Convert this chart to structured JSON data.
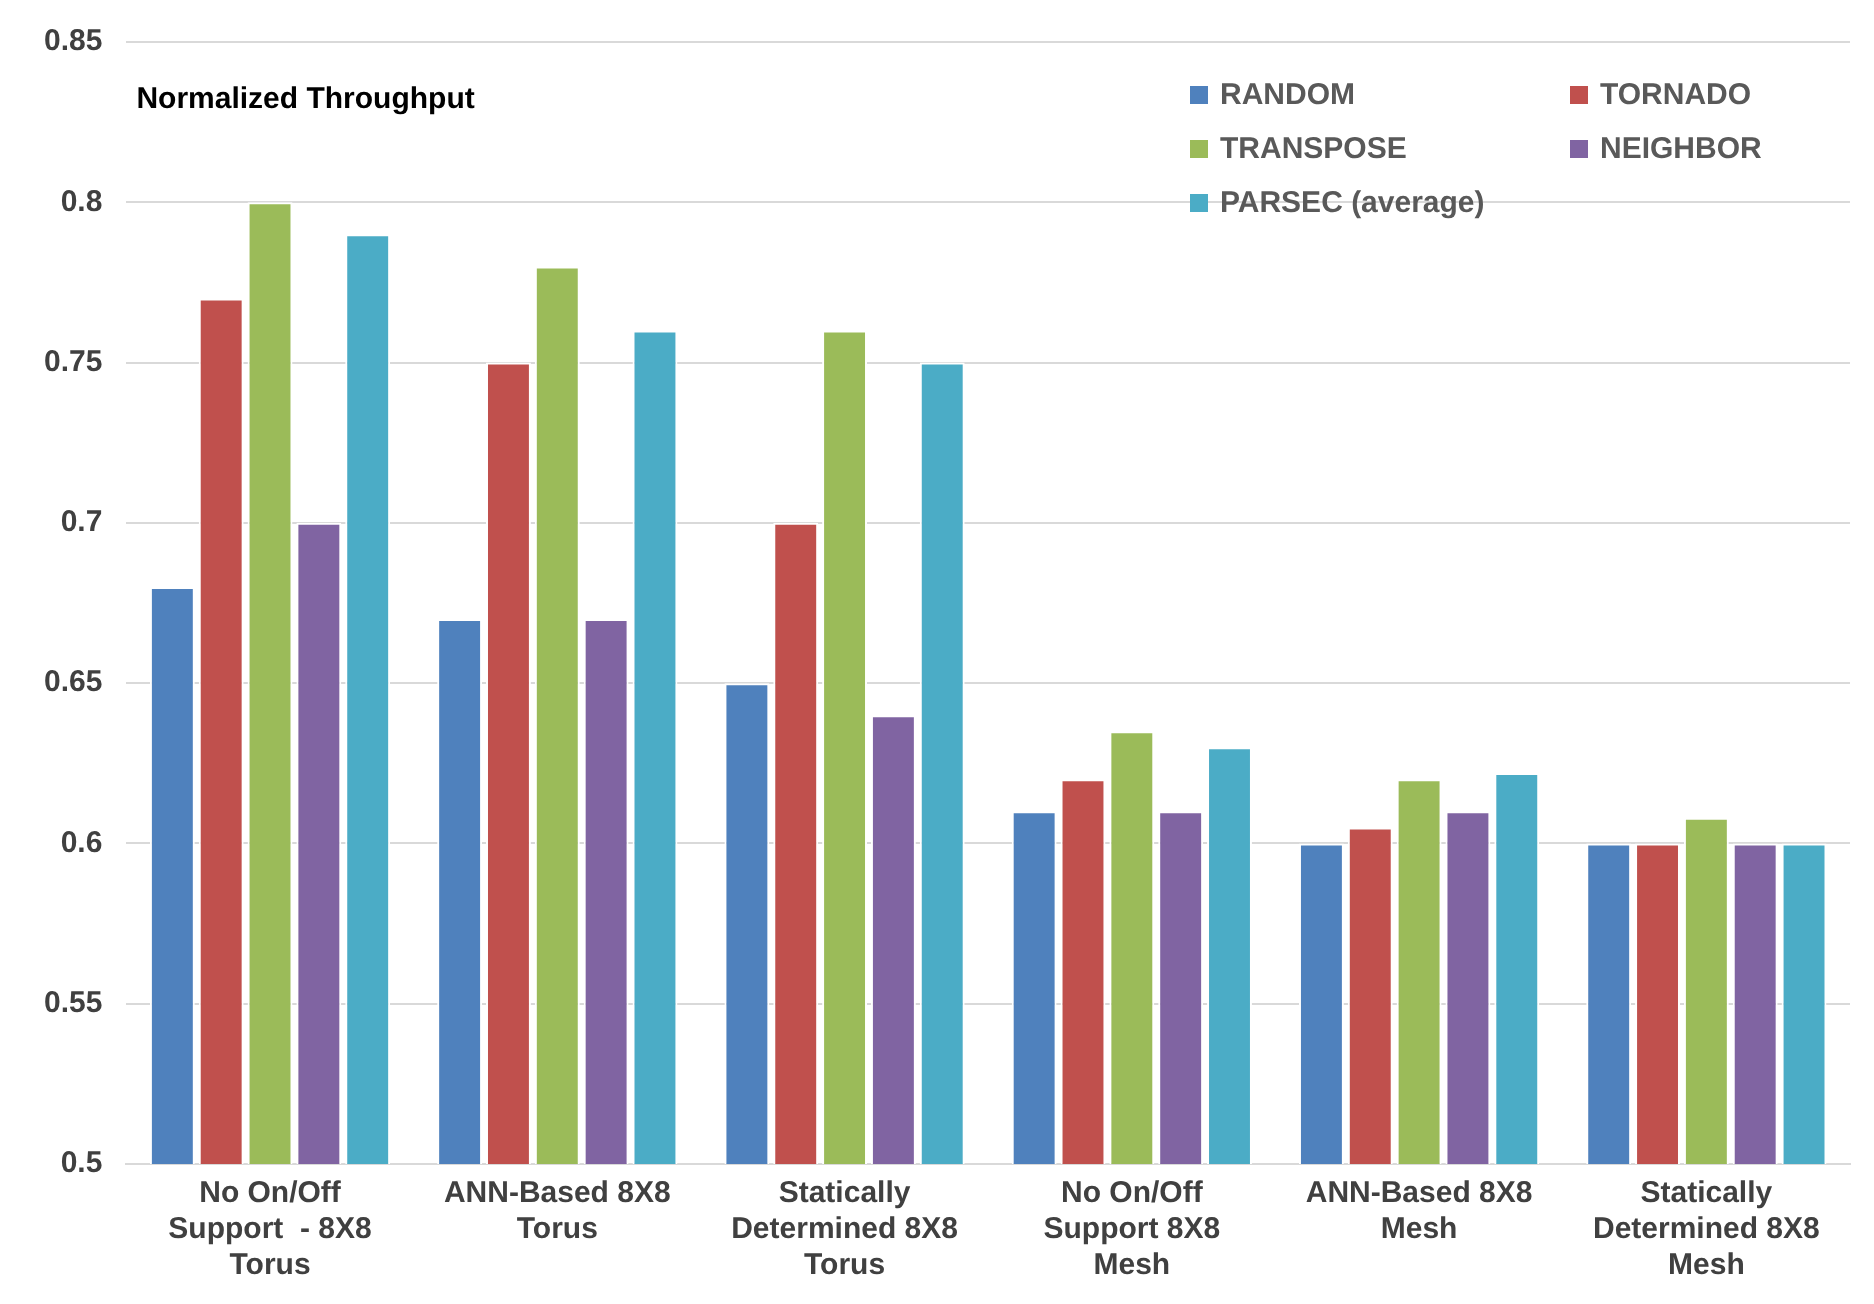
{
  "chart_data": {
    "type": "bar",
    "title": "Normalized Throughput",
    "categories": [
      "No On/Off Support  - 8X8 Torus",
      "ANN-Based 8X8 Torus",
      "Statically Determined 8X8 Torus",
      "No On/Off Support 8X8 Mesh",
      "ANN-Based 8X8 Mesh",
      "Statically Determined 8X8 Mesh"
    ],
    "series": [
      {
        "name": "RANDOM",
        "color": "#4f81bd",
        "values": [
          0.68,
          0.67,
          0.65,
          0.61,
          0.6,
          0.6
        ]
      },
      {
        "name": "TORNADO",
        "color": "#c0504d",
        "values": [
          0.77,
          0.75,
          0.7,
          0.62,
          0.605,
          0.6
        ]
      },
      {
        "name": "TRANSPOSE",
        "color": "#9bbb59",
        "values": [
          0.8,
          0.78,
          0.76,
          0.635,
          0.62,
          0.608
        ]
      },
      {
        "name": "NEIGHBOR",
        "color": "#8064a2",
        "values": [
          0.7,
          0.67,
          0.64,
          0.61,
          0.61,
          0.6
        ]
      },
      {
        "name": "PARSEC (average)",
        "color": "#4bacc6",
        "values": [
          0.79,
          0.76,
          0.75,
          0.63,
          0.622,
          0.6
        ]
      }
    ],
    "ylim": [
      0.5,
      0.85
    ],
    "yticks": [
      0.5,
      0.55,
      0.6,
      0.65,
      0.7,
      0.75,
      0.8,
      0.85
    ],
    "grid": "y",
    "legend": "top right"
  }
}
